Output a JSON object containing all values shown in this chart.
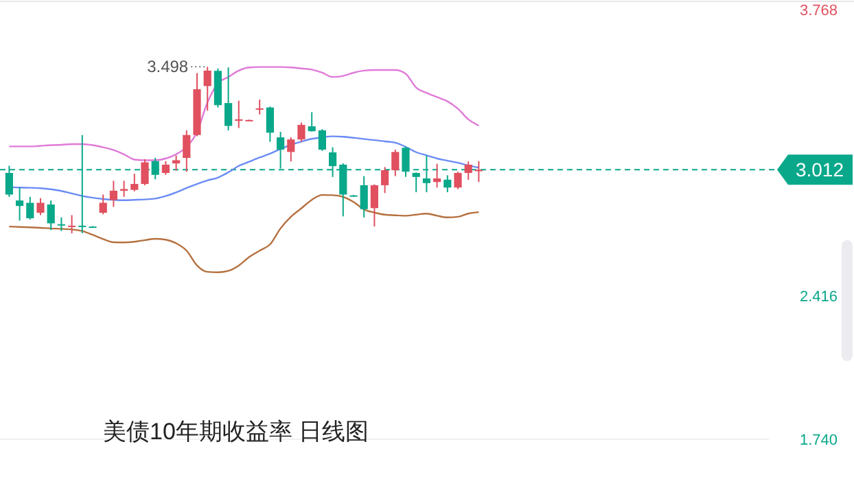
{
  "chart_data": {
    "type": "candlestick",
    "title": "美债10年期收益率  日线图",
    "categories": [
      null,
      null,
      null,
      null,
      null,
      null,
      null,
      null,
      null,
      null,
      null,
      null,
      null,
      null,
      null,
      null,
      null,
      null,
      null,
      null,
      null,
      null,
      null,
      null,
      null,
      null,
      null,
      null,
      null,
      null,
      null,
      null,
      null,
      null,
      null,
      null,
      null,
      null,
      null,
      null,
      null,
      null,
      null,
      null,
      null,
      null
    ],
    "ohlc": [
      [
        2.997,
        3.031,
        2.884,
        2.895
      ],
      [
        2.867,
        2.928,
        2.772,
        2.841
      ],
      [
        2.856,
        2.884,
        2.777,
        2.783
      ],
      [
        2.809,
        2.878,
        2.798,
        2.856
      ],
      [
        2.848,
        2.867,
        2.727,
        2.759
      ],
      [
        2.755,
        2.787,
        2.723,
        2.755
      ],
      [
        2.748,
        2.798,
        2.712,
        2.748
      ],
      [
        2.748,
        3.176,
        2.712,
        2.744
      ],
      [
        2.744,
        2.746,
        2.742,
        2.744
      ],
      [
        2.809,
        2.895,
        2.802,
        2.856
      ],
      [
        2.869,
        2.96,
        2.837,
        2.913
      ],
      [
        2.913,
        2.96,
        2.884,
        2.921
      ],
      [
        2.917,
        2.993,
        2.91,
        2.945
      ],
      [
        2.945,
        3.062,
        2.939,
        3.047
      ],
      [
        3.053,
        3.068,
        2.967,
        2.988
      ],
      [
        2.997,
        3.053,
        2.988,
        3.036
      ],
      [
        3.042,
        3.079,
        3.008,
        3.057
      ],
      [
        3.068,
        3.198,
        3.003,
        3.176
      ],
      [
        3.176,
        3.468,
        3.17,
        3.392
      ],
      [
        3.407,
        3.498,
        3.291,
        3.48
      ],
      [
        3.479,
        3.49,
        3.306,
        3.317
      ],
      [
        3.327,
        3.495,
        3.198,
        3.219
      ],
      [
        3.243,
        3.338,
        3.209,
        3.25
      ],
      [
        3.247,
        3.249,
        3.245,
        3.247
      ],
      [
        3.296,
        3.343,
        3.273,
        3.302
      ],
      [
        3.306,
        3.31,
        3.144,
        3.187
      ],
      [
        3.165,
        3.191,
        3.018,
        3.107
      ],
      [
        3.096,
        3.165,
        3.051,
        3.155
      ],
      [
        3.155,
        3.235,
        3.144,
        3.224
      ],
      [
        3.217,
        3.284,
        3.192,
        3.194
      ],
      [
        3.198,
        3.204,
        3.101,
        3.107
      ],
      [
        3.094,
        3.118,
        2.978,
        3.029
      ],
      [
        3.036,
        3.042,
        2.792,
        2.895
      ],
      [
        2.891,
        2.893,
        2.887,
        2.889
      ],
      [
        2.939,
        2.982,
        2.787,
        2.826
      ],
      [
        2.831,
        2.943,
        2.744,
        2.939
      ],
      [
        2.939,
        3.025,
        2.902,
        3.01
      ],
      [
        3.01,
        3.107,
        2.982,
        3.096
      ],
      [
        3.116,
        3.122,
        2.978,
        3.003
      ],
      [
        2.997,
        2.999,
        2.906,
        2.978
      ],
      [
        2.971,
        3.079,
        2.906,
        2.949
      ],
      [
        2.954,
        3.04,
        2.928,
        2.971
      ],
      [
        2.965,
        2.986,
        2.906,
        2.928
      ],
      [
        2.928,
        3.003,
        2.921,
        2.997
      ],
      [
        2.997,
        3.051,
        2.965,
        3.036
      ],
      [
        3.005,
        3.053,
        2.954,
        3.012
      ]
    ],
    "colors": [
      "#0aa88a",
      "#0aa88a",
      "#0aa88a",
      "#e0505f",
      "#0aa88a",
      "#0aa88a",
      "#e0505f",
      "#0aa88a",
      "#0aa88a",
      "#e0505f",
      "#e0505f",
      "#e0505f",
      "#e0505f",
      "#e0505f",
      "#0aa88a",
      "#e0505f",
      "#e0505f",
      "#e0505f",
      "#e0505f",
      "#e0505f",
      "#0aa88a",
      "#0aa88a",
      "#e0505f",
      "#e0505f",
      "#e0505f",
      "#0aa88a",
      "#0aa88a",
      "#e0505f",
      "#e0505f",
      "#0aa88a",
      "#0aa88a",
      "#0aa88a",
      "#0aa88a",
      "#0aa88a",
      "#0aa88a",
      "#e0505f",
      "#e0505f",
      "#e0505f",
      "#0aa88a",
      "#0aa88a",
      "#0aa88a",
      "#e0505f",
      "#0aa88a",
      "#e0505f",
      "#e0505f",
      "#e0505f"
    ],
    "series": [
      {
        "type": "line",
        "color": "#e07ad8",
        "values": [
          3.122,
          3.122,
          3.122,
          3.125,
          3.128,
          3.13,
          3.133,
          3.133,
          3.128,
          3.118,
          3.105,
          3.085,
          3.06,
          3.057,
          3.057,
          3.065,
          3.085,
          3.12,
          3.19,
          3.33,
          3.42,
          3.45,
          3.48,
          3.495,
          3.497,
          3.497,
          3.497,
          3.495,
          3.49,
          3.485,
          3.47,
          3.45,
          3.455,
          3.47,
          3.48,
          3.483,
          3.483,
          3.483,
          3.465,
          3.4,
          3.375,
          3.355,
          3.335,
          3.3,
          3.25,
          3.22
        ]
      },
      {
        "type": "line",
        "color": "#6b8cf5",
        "values": [
          2.93,
          2.928,
          2.927,
          2.925,
          2.92,
          2.912,
          2.9,
          2.888,
          2.88,
          2.874,
          2.87,
          2.868,
          2.87,
          2.872,
          2.876,
          2.888,
          2.905,
          2.926,
          2.945,
          2.962,
          2.975,
          3.0,
          3.03,
          3.05,
          3.07,
          3.088,
          3.11,
          3.13,
          3.145,
          3.158,
          3.165,
          3.17,
          3.168,
          3.163,
          3.157,
          3.152,
          3.146,
          3.14,
          3.12,
          3.095,
          3.08,
          3.065,
          3.055,
          3.045,
          3.032,
          3.022
        ]
      },
      {
        "type": "line",
        "color": "#b5703f",
        "values": [
          2.744,
          2.742,
          2.74,
          2.738,
          2.735,
          2.733,
          2.73,
          2.723,
          2.705,
          2.685,
          2.67,
          2.669,
          2.672,
          2.68,
          2.686,
          2.682,
          2.665,
          2.63,
          2.56,
          2.53,
          2.528,
          2.535,
          2.56,
          2.6,
          2.63,
          2.66,
          2.735,
          2.79,
          2.83,
          2.87,
          2.893,
          2.892,
          2.884,
          2.86,
          2.825,
          2.81,
          2.8,
          2.797,
          2.795,
          2.8,
          2.805,
          2.795,
          2.787,
          2.79,
          2.805,
          2.812
        ]
      }
    ],
    "ylim": [
      1.74,
      3.768
    ],
    "yticks": [
      3.768,
      2.416,
      {
        "value": 1.74,
        "label": "1.740"
      }
    ],
    "tick_labels": "y",
    "ref_lines": [
      {
        "axis": "y",
        "value": 3.012,
        "label": "3.012",
        "color": "#0aa88a",
        "line_style": "dashed"
      }
    ],
    "annotations": [
      "3.498"
    ]
  }
}
